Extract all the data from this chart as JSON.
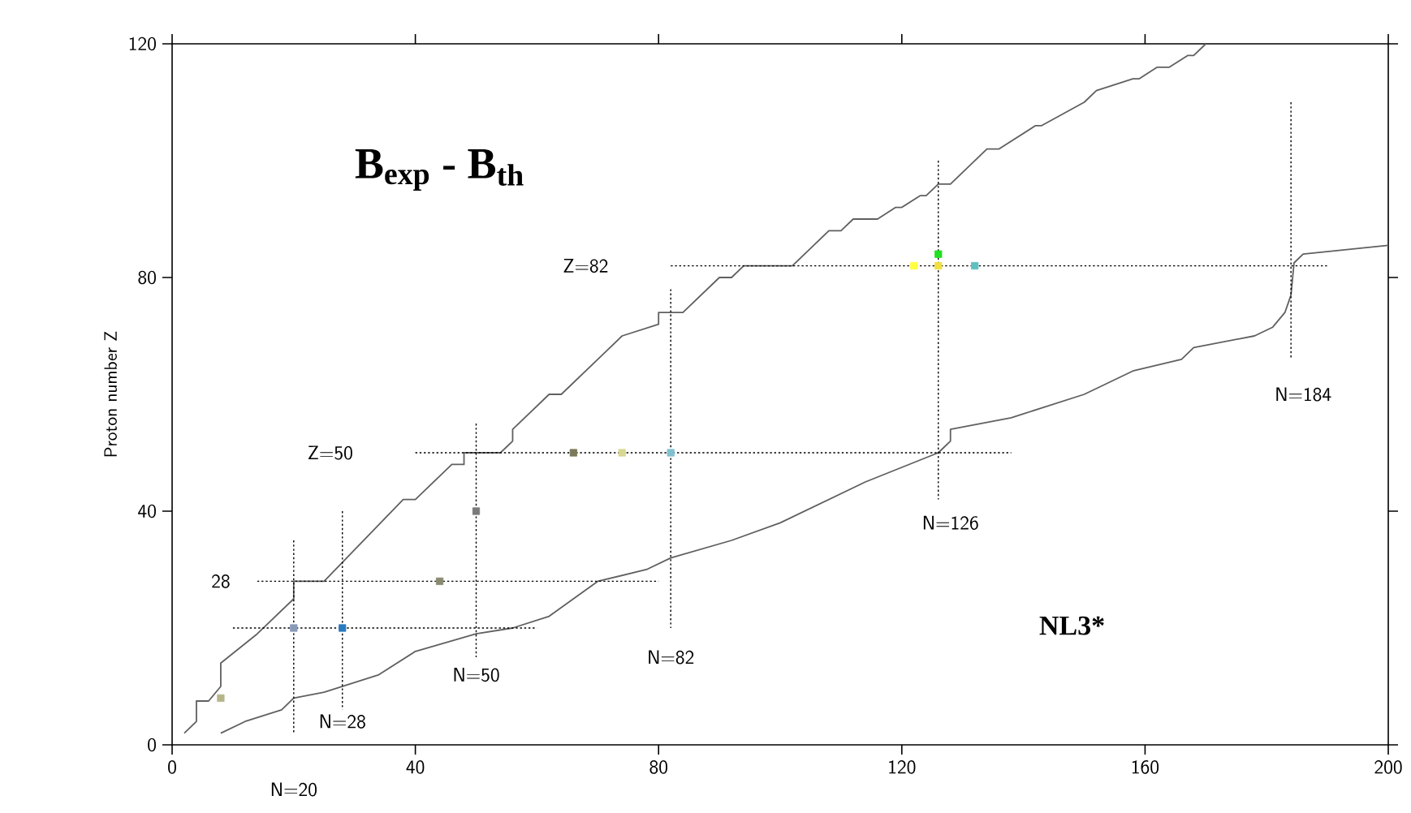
{
  "chart_data": {
    "type": "line",
    "title": "B$_{exp}$ - B$_{th}$",
    "ylabel": "Proton number  Z",
    "xlim": [
      0,
      200
    ],
    "ylim": [
      0,
      120
    ],
    "xticks": [
      0,
      40,
      80,
      120,
      160,
      200
    ],
    "yticks": [
      0,
      40,
      80,
      120
    ],
    "series": [
      {
        "color": "#606060",
        "x": [
          2,
          4,
          4,
          6,
          8,
          8,
          14,
          20,
          20,
          25,
          38,
          40,
          46,
          48,
          48,
          54,
          56,
          56,
          62,
          64,
          70,
          74,
          80,
          80,
          84,
          90,
          92,
          94,
          102,
          108,
          110,
          112,
          116,
          119,
          120,
          123,
          124,
          126,
          128,
          134,
          136,
          142,
          143,
          150,
          152,
          158,
          159,
          162,
          164,
          167,
          168,
          170
        ],
        "values": [
          2,
          4,
          7.5,
          7.5,
          10,
          14,
          19,
          25,
          28,
          28,
          42,
          42,
          48,
          48,
          50,
          50,
          52,
          54,
          60,
          60,
          66,
          70,
          72,
          74,
          74,
          80,
          80,
          82,
          82,
          88,
          88,
          90,
          90,
          92,
          92,
          94,
          94,
          96,
          96,
          102,
          102,
          106,
          106,
          110,
          112,
          114,
          114,
          116,
          116,
          118,
          118,
          120
        ]
      },
      {
        "color": "#606060",
        "x": [
          8,
          12,
          18,
          20,
          25,
          34,
          40,
          50,
          56,
          62,
          70,
          78,
          82,
          92,
          100,
          114,
          126,
          128,
          128,
          138,
          150,
          158,
          166,
          168,
          178,
          181,
          183,
          184,
          184.5,
          186,
          200
        ],
        "values": [
          2,
          4,
          6,
          8,
          9,
          12,
          16,
          19,
          20,
          22,
          28,
          30,
          32,
          35,
          38,
          45,
          50,
          52,
          54,
          56,
          60,
          64,
          66,
          68,
          70,
          71.5,
          74,
          77,
          82.5,
          84,
          85.5
        ]
      },
      {
        "type": "line",
        "line_style": "dotted",
        "color": "#000000",
        "x": [
          82,
          190
        ],
        "values": [
          82,
          82
        ]
      },
      {
        "type": "line",
        "line_style": "dotted",
        "color": "#000000",
        "x": [
          40,
          138
        ],
        "values": [
          50,
          50
        ]
      },
      {
        "type": "line",
        "line_style": "dotted",
        "color": "#000000",
        "x": [
          14,
          80
        ],
        "values": [
          28,
          28
        ]
      },
      {
        "type": "line",
        "line_style": "dotted",
        "color": "#000000",
        "x": [
          10,
          60
        ],
        "values": [
          20,
          20
        ]
      },
      {
        "type": "line",
        "line_style": "dotted",
        "color": "#000000",
        "x": [
          20,
          20
        ],
        "values": [
          35,
          2
        ]
      },
      {
        "type": "line",
        "line_style": "dotted",
        "color": "#000000",
        "x": [
          28,
          28
        ],
        "values": [
          40,
          6
        ]
      },
      {
        "type": "line",
        "line_style": "dotted",
        "color": "#000000",
        "x": [
          50,
          50
        ],
        "values": [
          55,
          15
        ]
      },
      {
        "type": "line",
        "line_style": "dotted",
        "color": "#000000",
        "x": [
          82,
          82
        ],
        "values": [
          78,
          20
        ]
      },
      {
        "type": "line",
        "line_style": "dotted",
        "color": "#000000",
        "x": [
          126,
          126
        ],
        "values": [
          100,
          42
        ]
      },
      {
        "type": "line",
        "line_style": "dotted",
        "color": "#000000",
        "x": [
          184,
          184
        ],
        "values": [
          110,
          66
        ]
      },
      {
        "type": "scatter",
        "marker": "square",
        "x": [
          8,
          20,
          28,
          44,
          50,
          66,
          74,
          82,
          122,
          126,
          126,
          132
        ],
        "values": [
          8,
          20,
          20,
          28,
          40,
          50,
          50,
          50,
          82,
          82,
          84,
          82
        ],
        "colors": [
          "#b5b58a",
          "#8a9ab8",
          "#2a7ac0",
          "#8a8a72",
          "#7a7a7a",
          "#7a7a5a",
          "#d8d890",
          "#80c0d0",
          "#ffff40",
          "#f0e040",
          "#20e020",
          "#60c0c0"
        ]
      }
    ],
    "annotations": [
      "Z=82",
      "Z=50",
      "28",
      "N=20",
      "N=28",
      "N=50",
      "N=82",
      "N=126",
      "N=184",
      "NL3*"
    ]
  }
}
